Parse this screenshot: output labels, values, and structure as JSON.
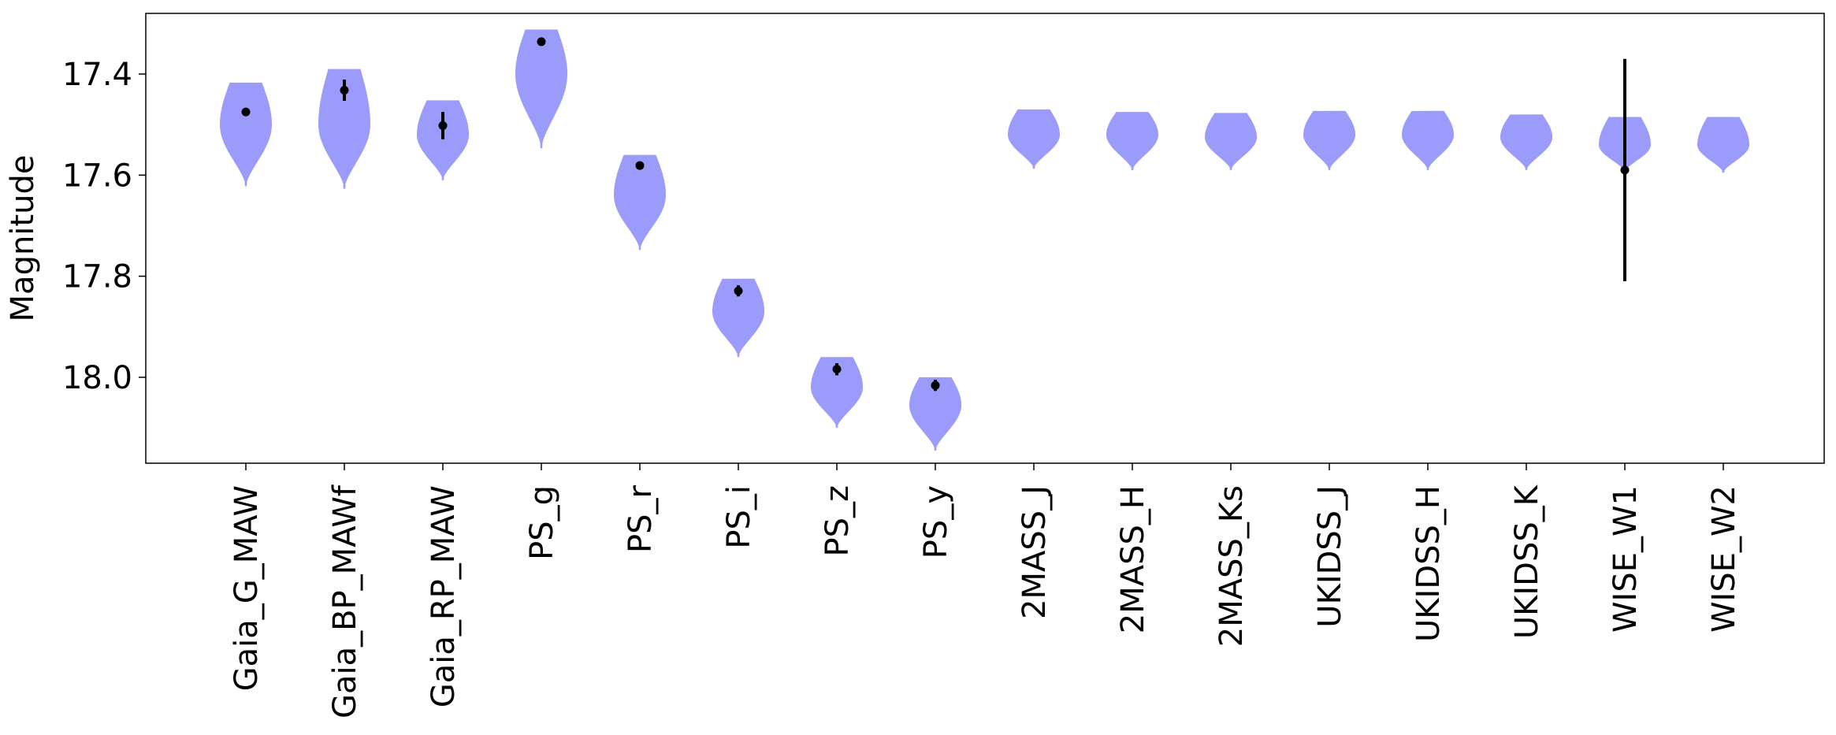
{
  "chart_data": {
    "type": "violin",
    "title": "",
    "xlabel": "",
    "ylabel": "Magnitude",
    "y_axis_inverted": true,
    "ylim": [
      18.17,
      17.28
    ],
    "yticks": [
      17.4,
      17.6,
      17.8,
      18.0
    ],
    "ytick_labels": [
      "17.4",
      "17.6",
      "17.8",
      "18.0"
    ],
    "grid": false,
    "legend": "none",
    "colors": {
      "violin_fill": "#9b9bfb",
      "marker": "#000000",
      "axes": "#000000"
    },
    "categories": [
      "Gaia_G_MAW",
      "Gaia_BP_MAWf",
      "Gaia_RP_MAW",
      "PS_g",
      "PS_r",
      "PS_i",
      "PS_z",
      "PS_y",
      "2MASS_J",
      "2MASS_H",
      "2MASS_Ks",
      "UKIDSS_J",
      "UKIDSS_H",
      "UKIDSS_K",
      "WISE_W1",
      "WISE_W2"
    ],
    "violins": [
      {
        "min": 17.417,
        "max": 17.622,
        "center": 17.5
      },
      {
        "min": 17.39,
        "max": 17.627,
        "center": 17.5
      },
      {
        "min": 17.452,
        "max": 17.61,
        "center": 17.52
      },
      {
        "min": 17.312,
        "max": 17.547,
        "center": 17.4
      },
      {
        "min": 17.56,
        "max": 17.748,
        "center": 17.64
      },
      {
        "min": 17.805,
        "max": 17.96,
        "center": 17.87
      },
      {
        "min": 17.96,
        "max": 18.1,
        "center": 18.02
      },
      {
        "min": 18.0,
        "max": 18.145,
        "center": 18.055
      },
      {
        "min": 17.47,
        "max": 17.587,
        "center": 17.52
      },
      {
        "min": 17.475,
        "max": 17.59,
        "center": 17.52
      },
      {
        "min": 17.477,
        "max": 17.59,
        "center": 17.525
      },
      {
        "min": 17.473,
        "max": 17.59,
        "center": 17.52
      },
      {
        "min": 17.473,
        "max": 17.59,
        "center": 17.52
      },
      {
        "min": 17.48,
        "max": 17.59,
        "center": 17.525
      },
      {
        "min": 17.485,
        "max": 17.593,
        "center": 17.54
      },
      {
        "min": 17.485,
        "max": 17.595,
        "center": 17.54
      }
    ],
    "observed": [
      {
        "value": 17.475,
        "err": 0.008
      },
      {
        "value": 17.432,
        "err": 0.021
      },
      {
        "value": 17.502,
        "err": 0.027
      },
      {
        "value": 17.336,
        "err": 0.006
      },
      {
        "value": 17.581,
        "err": 0.008
      },
      {
        "value": 17.829,
        "err": 0.011
      },
      {
        "value": 17.984,
        "err": 0.012
      },
      {
        "value": 18.016,
        "err": 0.011
      },
      null,
      null,
      null,
      null,
      null,
      null,
      {
        "value": 17.59,
        "err": 0.22
      },
      null
    ]
  }
}
